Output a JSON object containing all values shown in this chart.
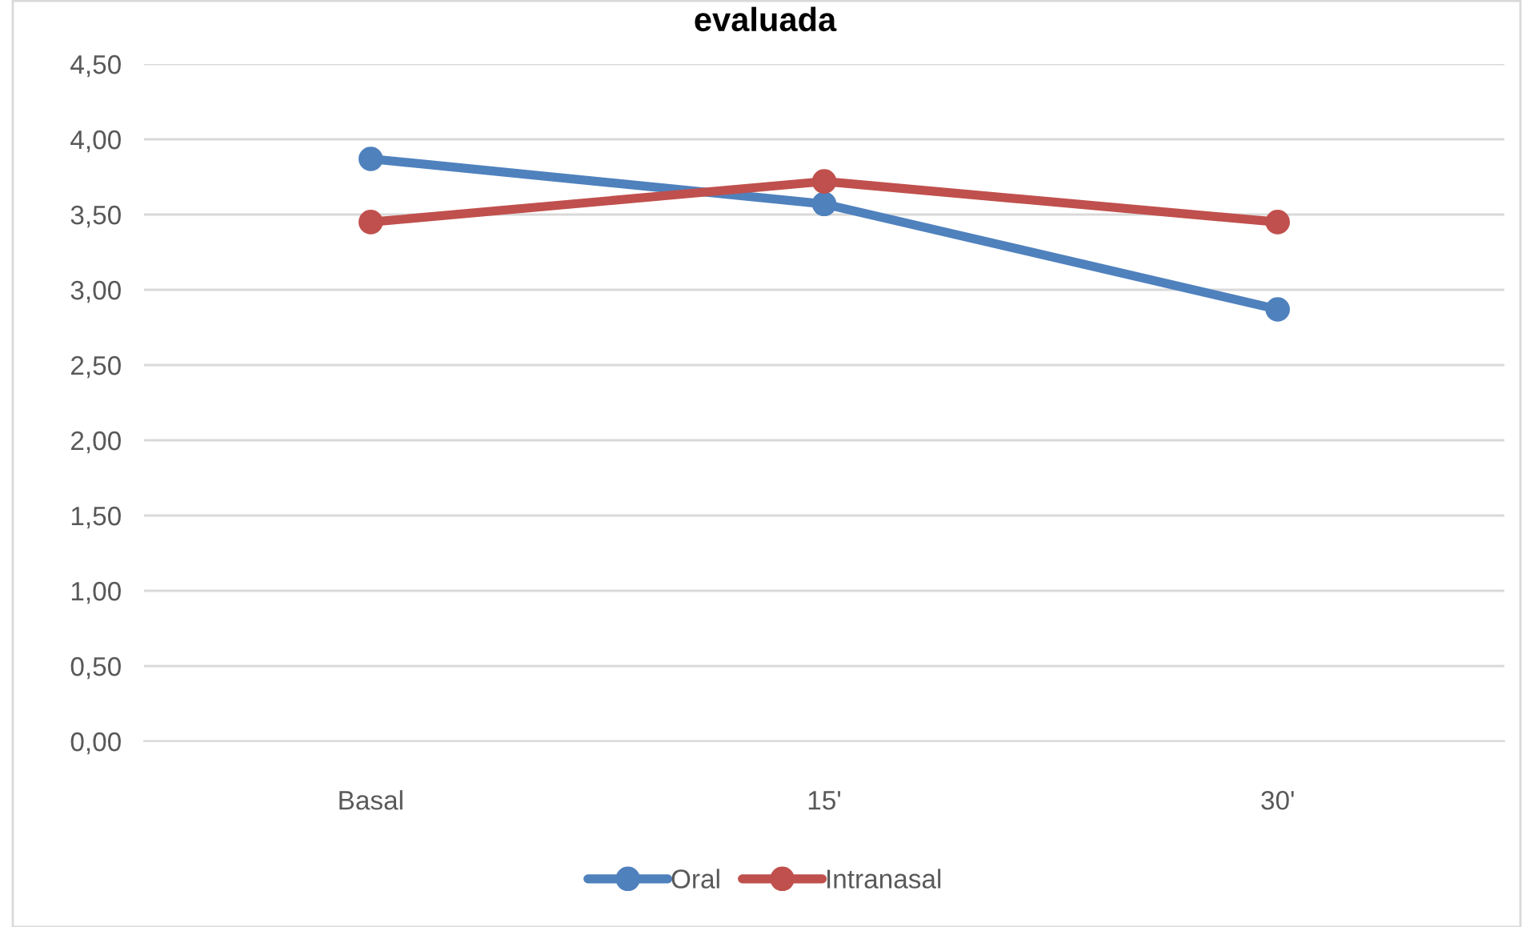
{
  "chart_data": {
    "type": "line",
    "title": "evaluada",
    "categories": [
      "Basal",
      "15'",
      "30'"
    ],
    "series": [
      {
        "name": "Oral",
        "color": "#4f81bd",
        "values": [
          3.87,
          3.57,
          2.87
        ]
      },
      {
        "name": "Intranasal",
        "color": "#c0504d",
        "values": [
          3.45,
          3.72,
          3.45
        ]
      }
    ],
    "ylim": [
      0,
      4.5
    ],
    "yticks": [
      {
        "value": 0,
        "label": "0,00"
      },
      {
        "value": 0.5,
        "label": "0,50"
      },
      {
        "value": 1,
        "label": "1,00"
      },
      {
        "value": 1.5,
        "label": "1,50"
      },
      {
        "value": 2,
        "label": "2,00"
      },
      {
        "value": 2.5,
        "label": "2,50"
      },
      {
        "value": 3,
        "label": "3,00"
      },
      {
        "value": 3.5,
        "label": "3,50"
      },
      {
        "value": 4,
        "label": "4,00"
      },
      {
        "value": 4.5,
        "label": "4,50"
      }
    ],
    "grid": "y",
    "legend": "bottom",
    "marker": "circle",
    "line_style": "solid"
  }
}
